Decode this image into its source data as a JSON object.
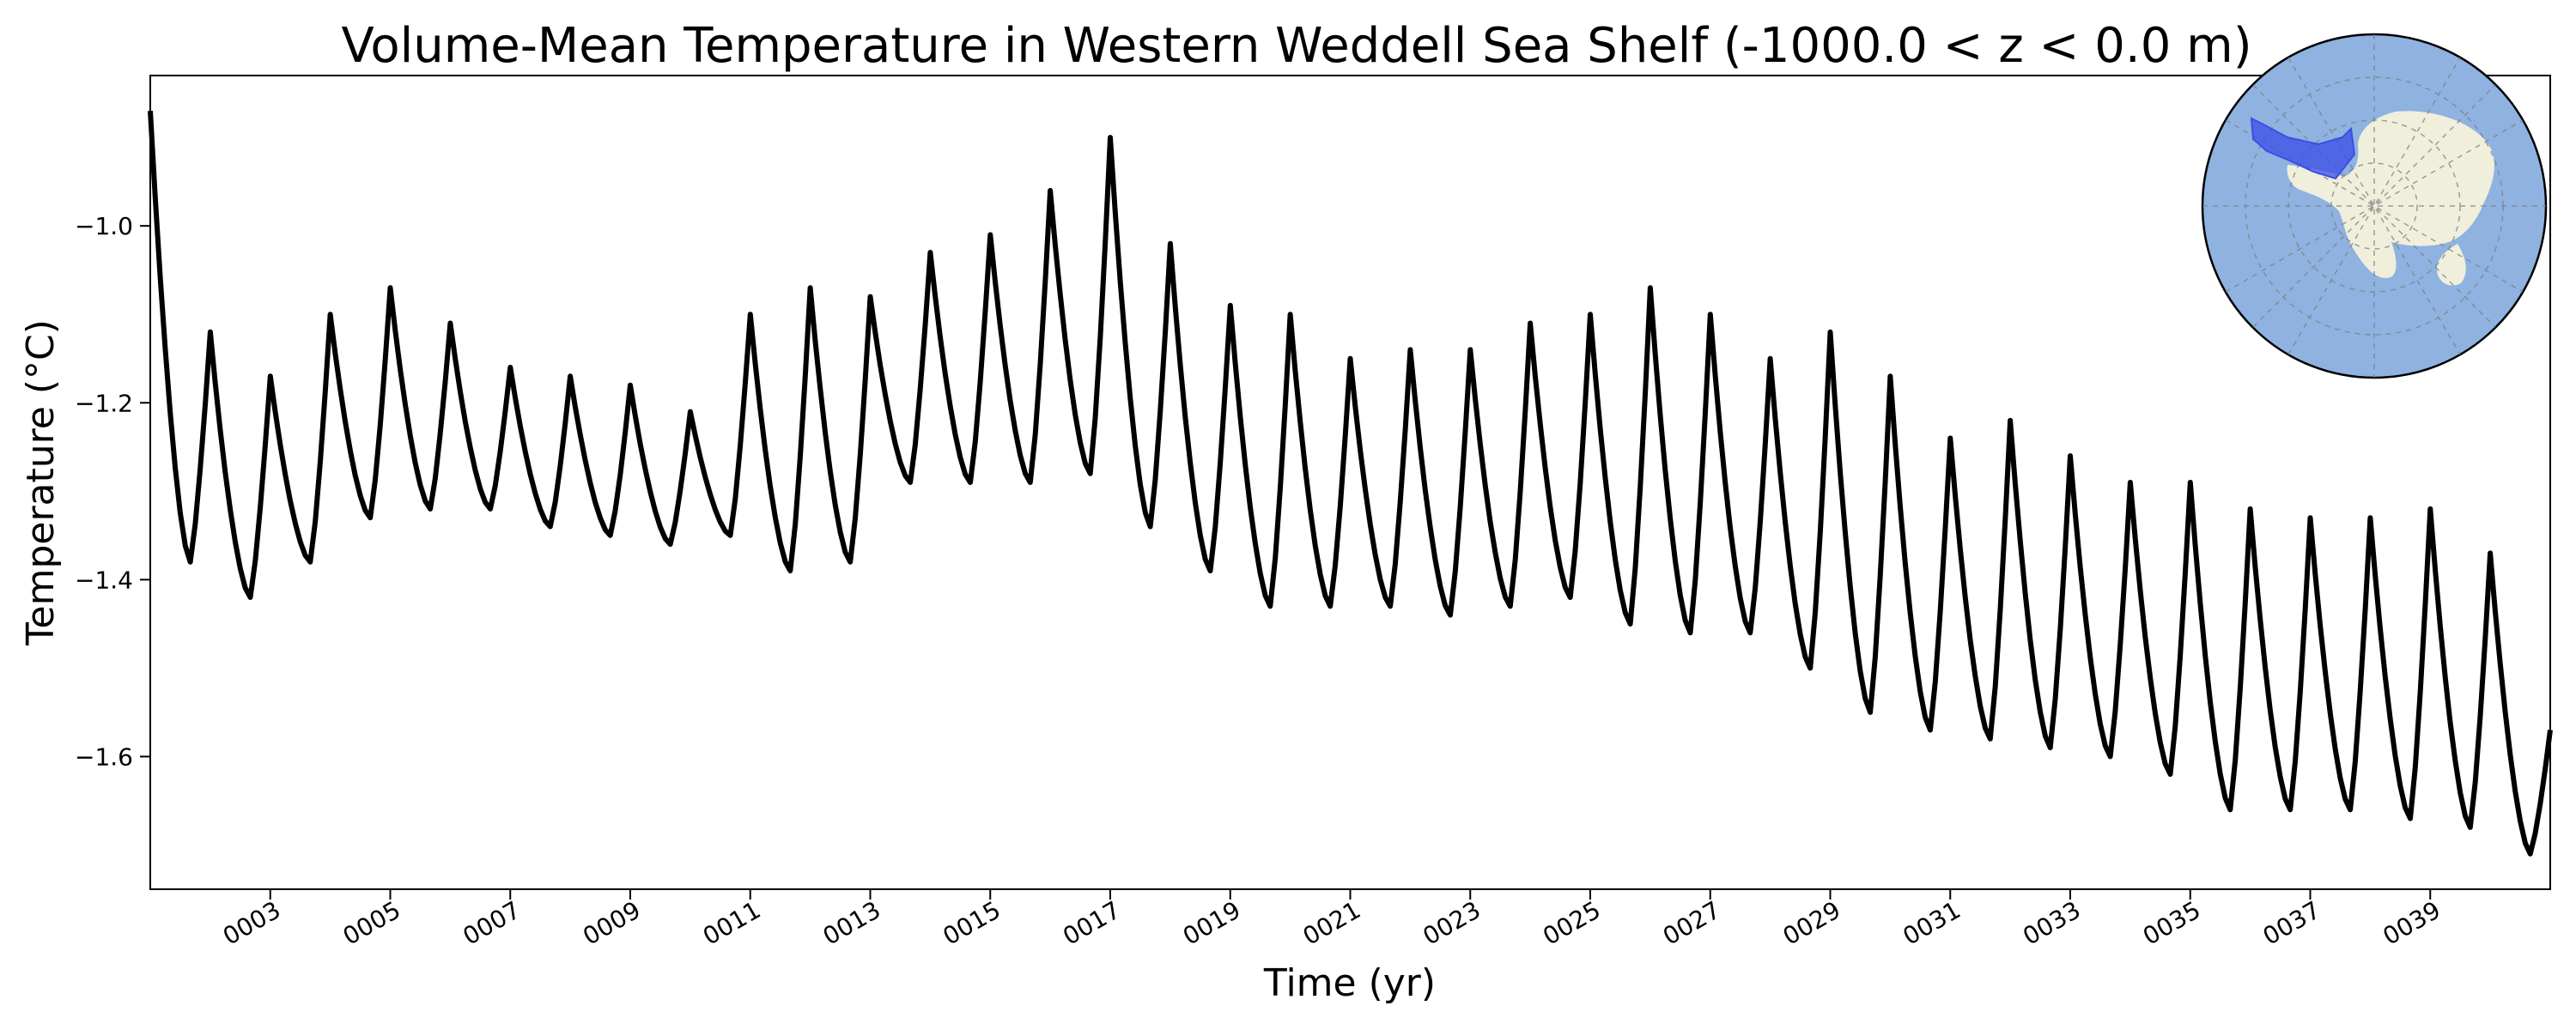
{
  "chart_data": {
    "type": "line",
    "title": "Volume-Mean Temperature in Western Weddell Sea Shelf (-1000.0 < z < 0.0 m)",
    "xlabel": "Time (yr)",
    "ylabel": "Temperature (°C)",
    "xlim": [
      1.0,
      41.0
    ],
    "ylim": [
      -1.75,
      -0.83
    ],
    "grid": false,
    "x_ticks": [
      3,
      5,
      7,
      9,
      11,
      13,
      15,
      17,
      19,
      21,
      23,
      25,
      27,
      29,
      31,
      33,
      35,
      37,
      39
    ],
    "x_tick_labels": [
      "0003",
      "0005",
      "0007",
      "0009",
      "0011",
      "0013",
      "0015",
      "0017",
      "0019",
      "0021",
      "0023",
      "0025",
      "0027",
      "0029",
      "0031",
      "0033",
      "0035",
      "0037",
      "0039"
    ],
    "y_ticks": [
      -1.6,
      -1.4,
      -1.2,
      -1.0
    ],
    "y_tick_labels": [
      "−1.6",
      "−1.4",
      "−1.2",
      "−1.0"
    ],
    "series": [
      {
        "color": "#000000",
        "annual": [
          {
            "year": 1,
            "max": -0.87,
            "min": -1.38
          },
          {
            "year": 2,
            "max": -1.12,
            "min": -1.42
          },
          {
            "year": 3,
            "max": -1.17,
            "min": -1.38
          },
          {
            "year": 4,
            "max": -1.1,
            "min": -1.33
          },
          {
            "year": 5,
            "max": -1.07,
            "min": -1.32
          },
          {
            "year": 6,
            "max": -1.11,
            "min": -1.32
          },
          {
            "year": 7,
            "max": -1.16,
            "min": -1.34
          },
          {
            "year": 8,
            "max": -1.17,
            "min": -1.35
          },
          {
            "year": 9,
            "max": -1.18,
            "min": -1.36
          },
          {
            "year": 10,
            "max": -1.21,
            "min": -1.35
          },
          {
            "year": 11,
            "max": -1.1,
            "min": -1.39
          },
          {
            "year": 12,
            "max": -1.07,
            "min": -1.38
          },
          {
            "year": 13,
            "max": -1.08,
            "min": -1.29
          },
          {
            "year": 14,
            "max": -1.03,
            "min": -1.29
          },
          {
            "year": 15,
            "max": -1.01,
            "min": -1.29
          },
          {
            "year": 16,
            "max": -0.96,
            "min": -1.28
          },
          {
            "year": 17,
            "max": -0.9,
            "min": -1.34
          },
          {
            "year": 18,
            "max": -1.02,
            "min": -1.39
          },
          {
            "year": 19,
            "max": -1.09,
            "min": -1.43
          },
          {
            "year": 20,
            "max": -1.1,
            "min": -1.43
          },
          {
            "year": 21,
            "max": -1.15,
            "min": -1.43
          },
          {
            "year": 22,
            "max": -1.14,
            "min": -1.44
          },
          {
            "year": 23,
            "max": -1.14,
            "min": -1.43
          },
          {
            "year": 24,
            "max": -1.11,
            "min": -1.42
          },
          {
            "year": 25,
            "max": -1.1,
            "min": -1.45
          },
          {
            "year": 26,
            "max": -1.07,
            "min": -1.46
          },
          {
            "year": 27,
            "max": -1.1,
            "min": -1.46
          },
          {
            "year": 28,
            "max": -1.15,
            "min": -1.5
          },
          {
            "year": 29,
            "max": -1.12,
            "min": -1.55
          },
          {
            "year": 30,
            "max": -1.17,
            "min": -1.57
          },
          {
            "year": 31,
            "max": -1.24,
            "min": -1.58
          },
          {
            "year": 32,
            "max": -1.22,
            "min": -1.59
          },
          {
            "year": 33,
            "max": -1.26,
            "min": -1.6
          },
          {
            "year": 34,
            "max": -1.29,
            "min": -1.62
          },
          {
            "year": 35,
            "max": -1.29,
            "min": -1.66
          },
          {
            "year": 36,
            "max": -1.32,
            "min": -1.66
          },
          {
            "year": 37,
            "max": -1.33,
            "min": -1.66
          },
          {
            "year": 38,
            "max": -1.33,
            "min": -1.67
          },
          {
            "year": 39,
            "max": -1.32,
            "min": -1.68
          },
          {
            "year": 40,
            "max": -1.37,
            "min": -1.71
          }
        ],
        "end_value": -1.57
      }
    ]
  },
  "inset_map": {
    "ocean_color": "#8fb2e0",
    "land_color": "#efefdc",
    "region_color": "#3a4ee6"
  }
}
